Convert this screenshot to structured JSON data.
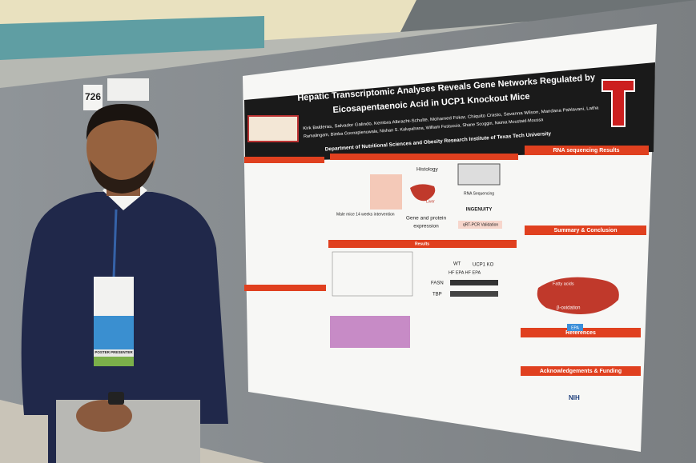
{
  "booth_number": "726",
  "poster": {
    "title_lines": [
      "Hepatic Transcriptomic Analyses Reveals Gene Networks Regulated by",
      "Eicosapentaenoic Acid in UCP1 Knockout Mice"
    ],
    "author_lines": [
      "Kirk Balderas, Salvador Galindo, Kembra Albracht-Schulte, Mohamed Fokar, Chiquito Crasto, Savanna Wilson, Mandana Pahlavani, Latha",
      "Ramalingam, Bimba Goonapienuwala, Nishan S. Kalupahana, William Festuccia, Shane Scoggin, Naima Moustaid-Moussa"
    ],
    "affiliation": "Department of Nutritional Sciences and Obesity Research Institute of Texas Tech University",
    "sections": {
      "results": "Results",
      "rna": "RNA sequencing Results",
      "summary": "Summary & Conclusion",
      "references": "References",
      "acknowledgements": "Acknowledgements & Funding"
    },
    "labels": {
      "histology": "Histology",
      "liver": "Liver",
      "rna_seq": "RNA Sequencing",
      "ingenuity": "INGENUITY",
      "qpcr": "qRT-PCR Validation",
      "gene": "Gene and protein",
      "expression": "expression",
      "mice": "Male mice 14 weeks intervention",
      "wt": "WT",
      "ko": "UCP1 KO",
      "hf_epa": "HF EPA HF EPA",
      "fasn": "FASN",
      "tbp": "TBP",
      "fatty_acids": "Fatty acids",
      "beta": "β-oxidation",
      "epa": "EPA",
      "nih": "NIH"
    }
  },
  "badge": {
    "role": "POSTER PRESENTER"
  }
}
